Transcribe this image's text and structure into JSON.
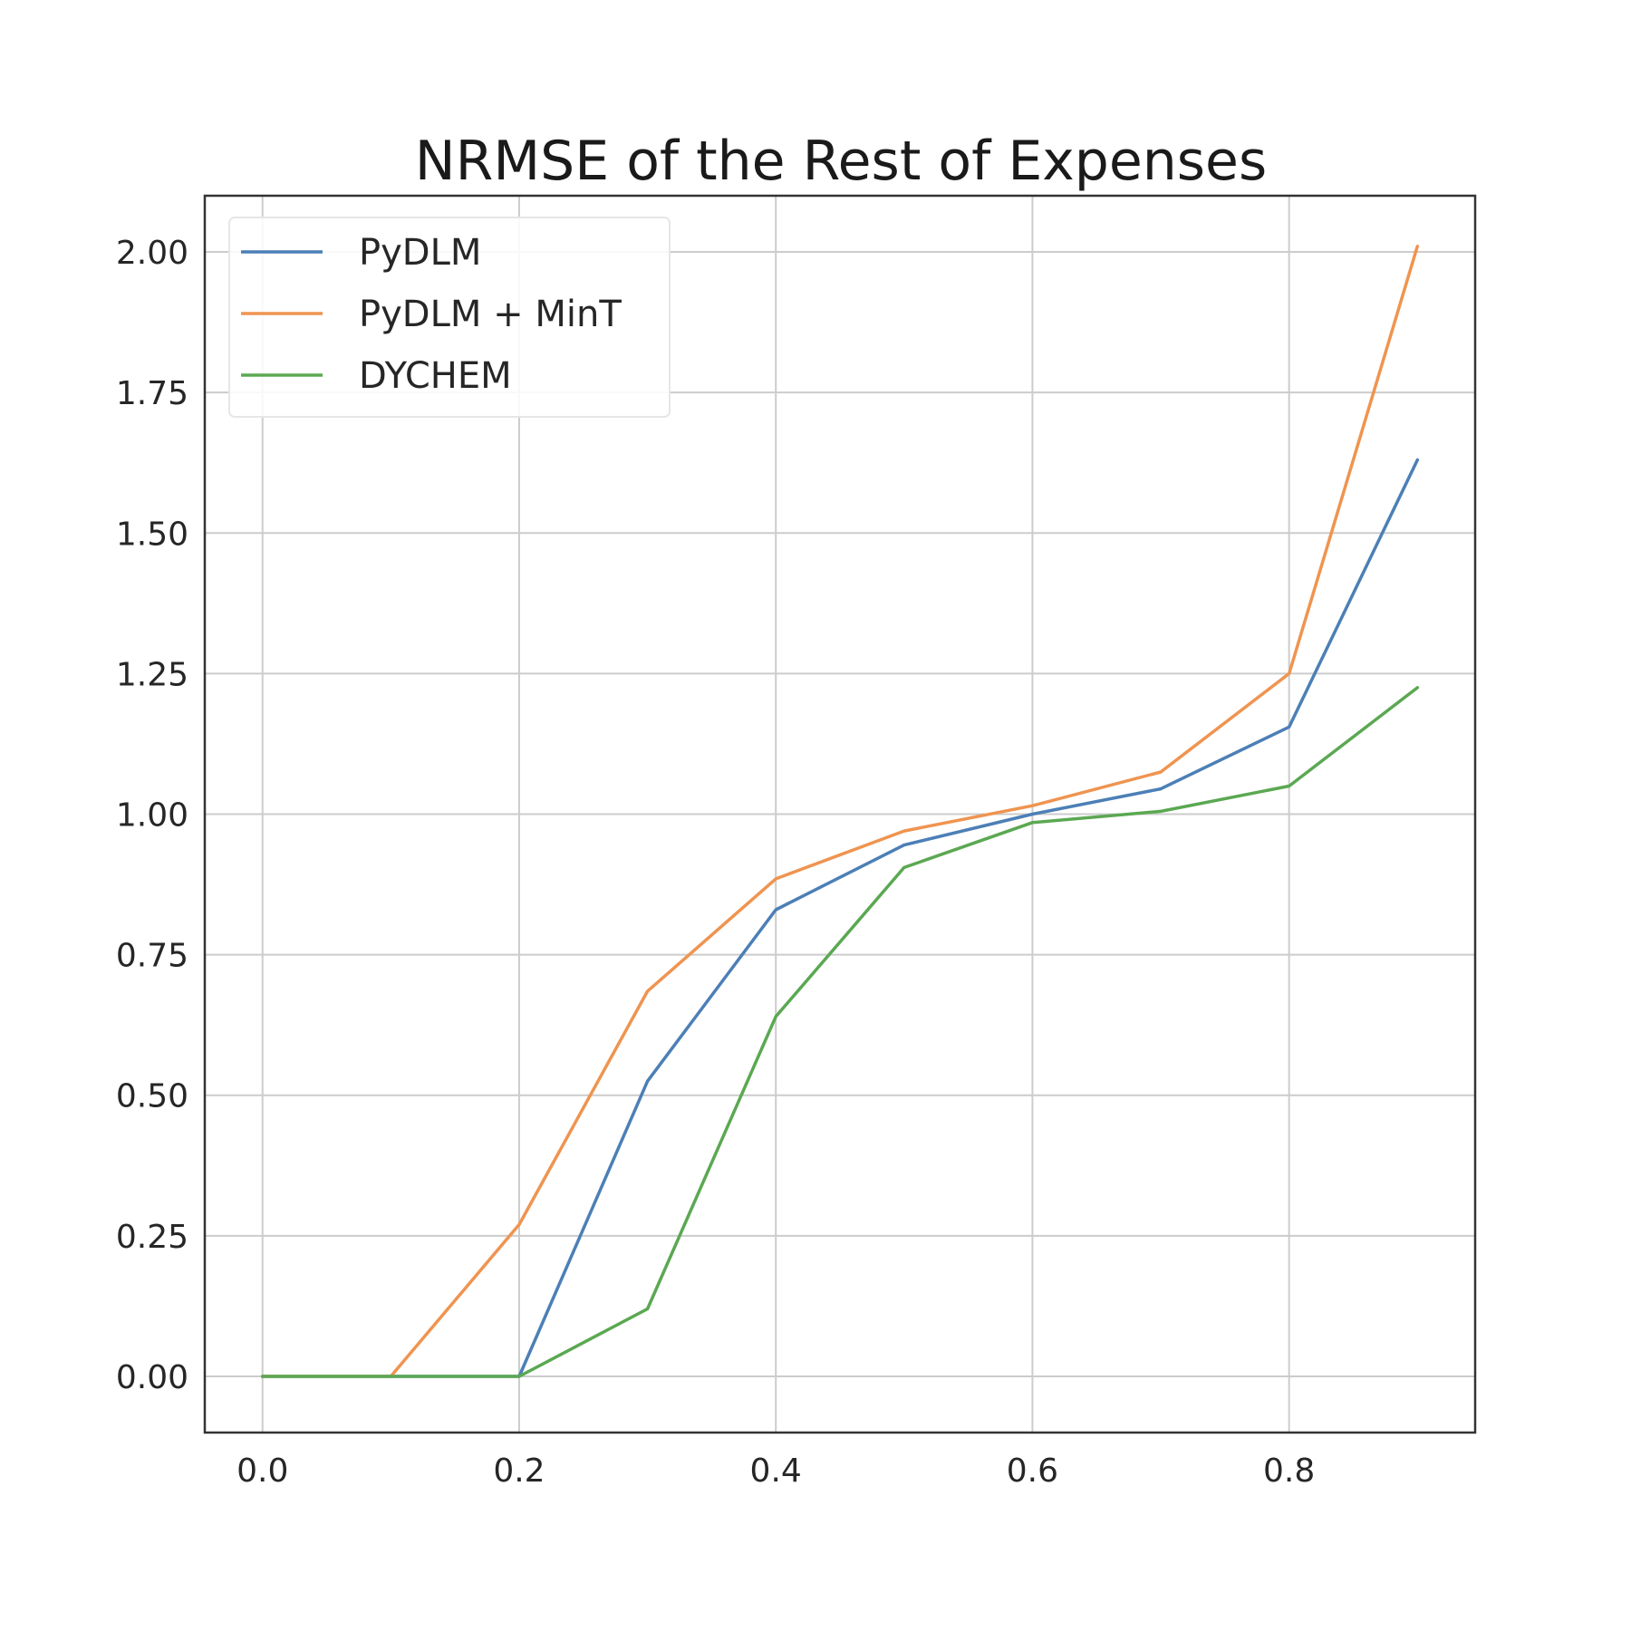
{
  "chart_data": {
    "type": "line",
    "title": "NRMSE of the Rest of Expenses",
    "xlabel": "",
    "ylabel": "",
    "xlim": [
      -0.045,
      0.945
    ],
    "ylim": [
      -0.1,
      2.1
    ],
    "xticks": [
      0.0,
      0.2,
      0.4,
      0.6,
      0.8
    ],
    "xtick_labels": [
      "0.0",
      "0.2",
      "0.4",
      "0.6",
      "0.8"
    ],
    "yticks": [
      0.0,
      0.25,
      0.5,
      0.75,
      1.0,
      1.25,
      1.5,
      1.75,
      2.0
    ],
    "ytick_labels": [
      "0.00",
      "0.25",
      "0.50",
      "0.75",
      "1.00",
      "1.25",
      "1.50",
      "1.75",
      "2.00"
    ],
    "grid": true,
    "legend_position": "top-left",
    "x": [
      0.0,
      0.1,
      0.2,
      0.3,
      0.4,
      0.5,
      0.6,
      0.7,
      0.8,
      0.9
    ],
    "series": [
      {
        "name": "PyDLM",
        "color": "#4c7fb6",
        "values": [
          0.0,
          0.0,
          0.0,
          0.525,
          0.83,
          0.945,
          1.0,
          1.045,
          1.155,
          1.63
        ]
      },
      {
        "name": "PyDLM + MinT",
        "color": "#ef9450",
        "values": [
          0.0,
          0.0,
          0.27,
          0.685,
          0.885,
          0.97,
          1.015,
          1.075,
          1.25,
          2.01
        ]
      },
      {
        "name": "DYCHEM",
        "color": "#5ba852",
        "values": [
          0.0,
          0.0,
          0.0,
          0.12,
          0.64,
          0.905,
          0.985,
          1.005,
          1.05,
          1.225
        ]
      }
    ]
  }
}
